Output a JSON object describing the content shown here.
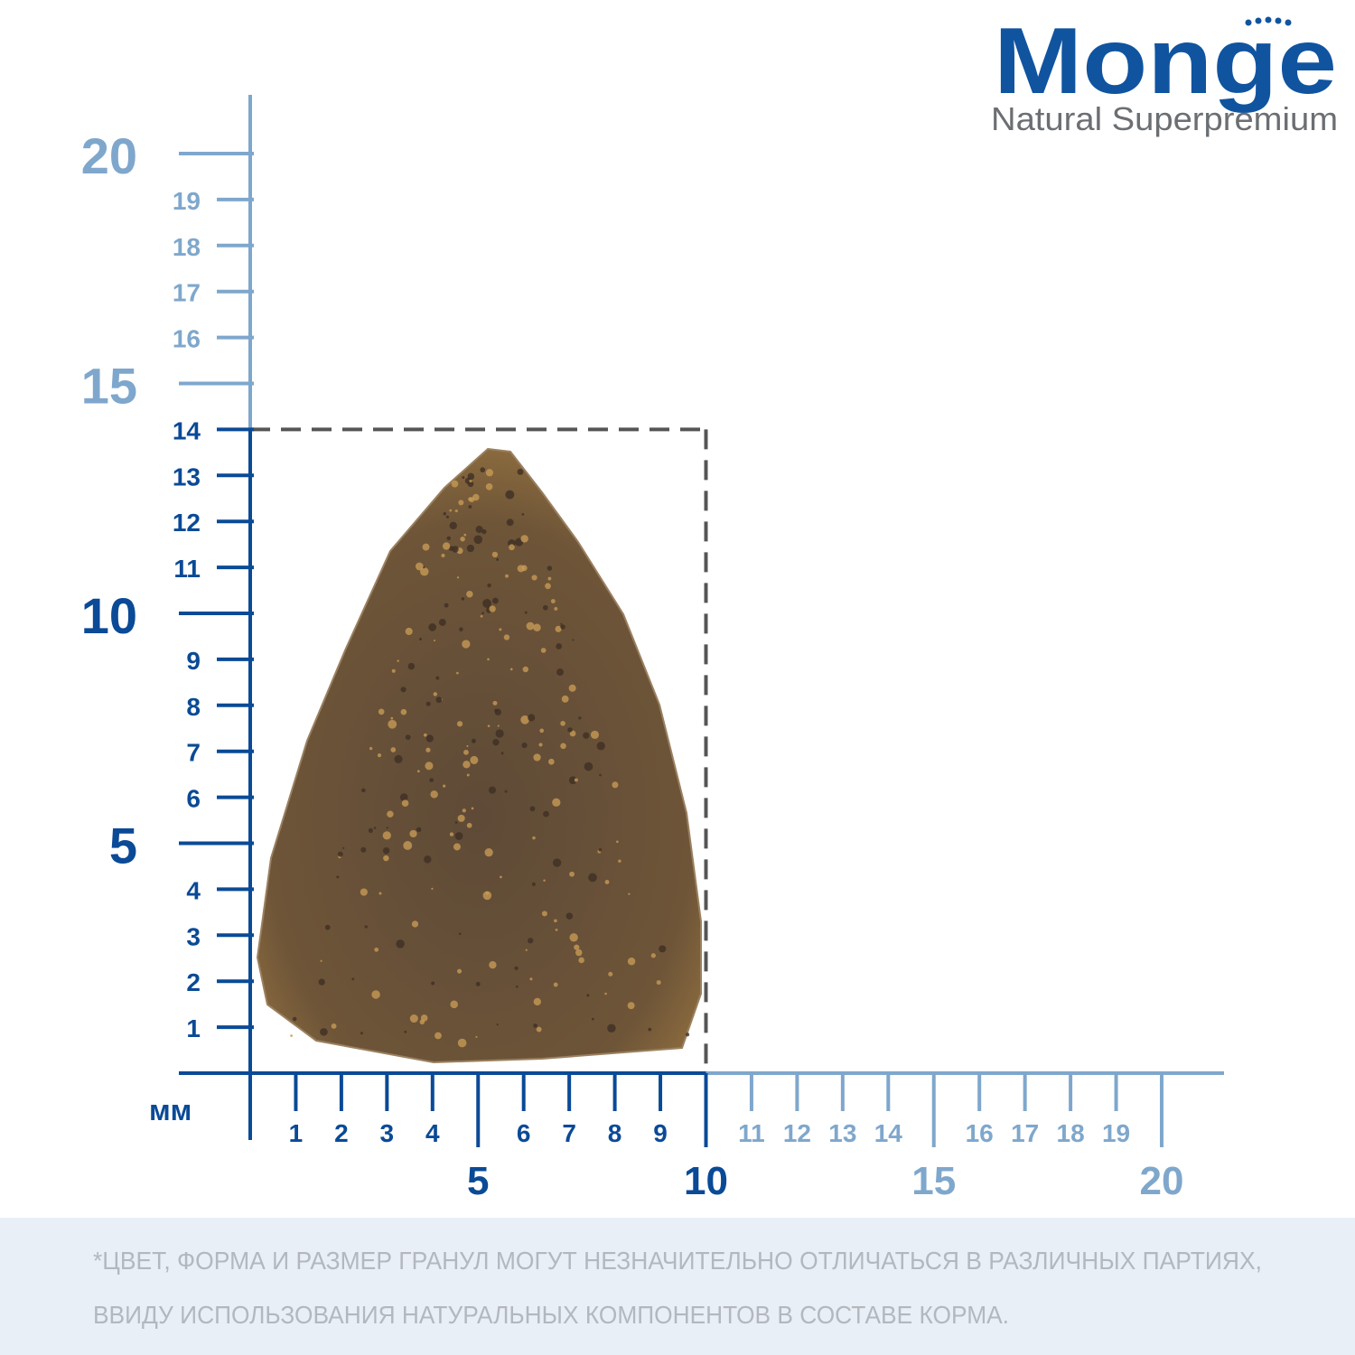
{
  "logo": {
    "brand": "Monge",
    "tagline": "Natural Superpremium"
  },
  "ruler": {
    "unit": "мм",
    "x_labels": [
      1,
      2,
      3,
      4,
      5,
      6,
      7,
      8,
      9,
      10,
      11,
      12,
      13,
      14,
      15,
      16,
      17,
      18,
      19,
      20
    ],
    "y_labels": [
      1,
      2,
      3,
      4,
      5,
      6,
      7,
      8,
      9,
      10,
      11,
      12,
      13,
      14,
      15,
      16,
      17,
      18,
      19,
      20
    ]
  },
  "dimensions": {
    "width": 10,
    "height": 14
  },
  "footnote": {
    "lines": [
      "*ЦВЕТ, ФОРМА И РАЗМЕР ГРАНУЛ МОГУТ НЕЗНАЧИТЕЛЬНО ОТЛИЧАТЬСЯ В РАЗЛИЧНЫХ ПАРТИЯХ,",
      "ВВИДУ ИСПОЛЬЗОВАНИЯ НАТУРАЛЬНЫХ КОМПОНЕНТОВ В СОСТАВЕ КОРМА."
    ]
  }
}
